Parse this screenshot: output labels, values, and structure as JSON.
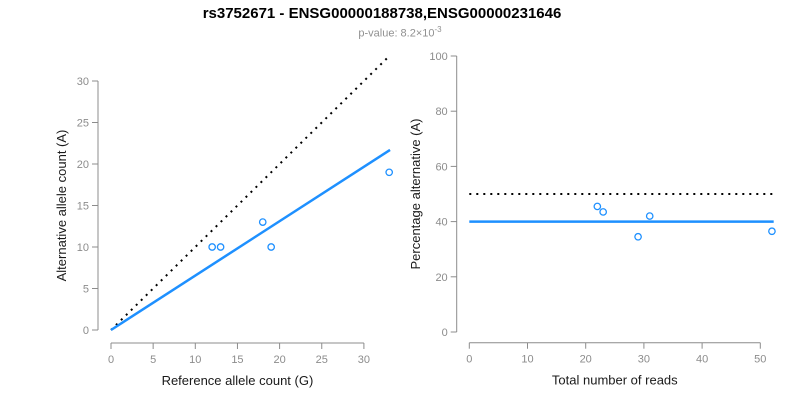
{
  "header": {
    "title": "rs3752671 - ENSG00000188738,ENSG00000231646",
    "subtitle_prefix": "p-value: 8.2×10",
    "subtitle_exponent": "-3"
  },
  "colors": {
    "accent_blue": "#1E90FF",
    "dotted_black": "#000000",
    "axis_gray": "#8c8c8c",
    "tick_label_gray": "#8c8c8c",
    "axis_title": "#1a1a1a",
    "subtitle_gray": "#909090",
    "background": "#ffffff"
  },
  "chart_data": [
    {
      "type": "scatter",
      "name": "allele-counts-scatter",
      "xlabel": "Reference allele count (G)",
      "ylabel": "Alternative allele count (A)",
      "xlim": [
        0,
        33.5
      ],
      "ylim": [
        0,
        33
      ],
      "xticks": [
        0,
        5,
        10,
        15,
        20,
        25,
        30
      ],
      "yticks": [
        0,
        5,
        10,
        15,
        20,
        25,
        30
      ],
      "grid": false,
      "legend": "none",
      "points": [
        [
          12,
          10
        ],
        [
          13,
          10
        ],
        [
          18,
          13
        ],
        [
          19,
          10
        ],
        [
          33,
          19
        ]
      ],
      "lines": [
        {
          "name": "identity-line",
          "style": "dotted",
          "color": "#000000",
          "x1": 0,
          "y1": 0,
          "x2": 33,
          "y2": 33
        },
        {
          "name": "fitted-ratio-line",
          "style": "solid",
          "color": "#1E90FF",
          "x1": 0,
          "y1": 0,
          "x2": 33.1,
          "y2": 21.7
        }
      ]
    },
    {
      "type": "scatter",
      "name": "percentage-alternative-scatter",
      "xlabel": "Total number of reads",
      "ylabel": "Percentage alternative (A)",
      "xlim": [
        0,
        52.5
      ],
      "ylim": [
        0,
        100
      ],
      "xticks": [
        0,
        10,
        20,
        30,
        40,
        50
      ],
      "yticks": [
        0,
        20,
        40,
        60,
        80,
        100
      ],
      "grid": false,
      "legend": "none",
      "points": [
        [
          22,
          45.5
        ],
        [
          23,
          43.5
        ],
        [
          29,
          34.5
        ],
        [
          31,
          42
        ],
        [
          52,
          36.5
        ]
      ],
      "lines": [
        {
          "name": "expected-50pct-line",
          "style": "dotted",
          "color": "#000000",
          "x1": 0,
          "y1": 50,
          "x2": 52.3,
          "y2": 50
        },
        {
          "name": "fitted-40pct-line",
          "style": "solid",
          "color": "#1E90FF",
          "x1": 0,
          "y1": 40,
          "x2": 52.3,
          "y2": 40
        }
      ]
    }
  ]
}
